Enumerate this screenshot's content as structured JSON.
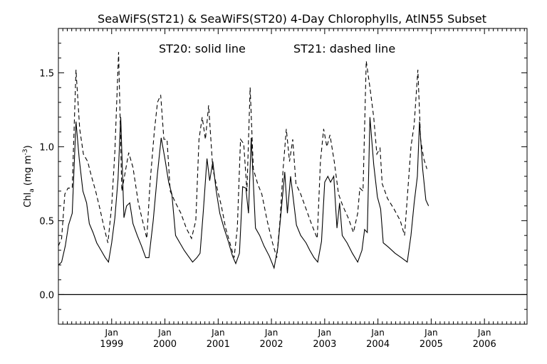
{
  "chart_data": {
    "type": "line",
    "title": "SeaWiFS(ST21) & SeaWiFS(ST20) 4-Day Chlorophylls, AtlN55 Subset",
    "annotations": [
      "ST20: solid line",
      "ST21: dashed line"
    ],
    "ylabel": {
      "main": "Chl",
      "sub": "a",
      "units_open": " (mg m",
      "units_sup": "-3",
      "units_close": ")"
    },
    "xlim": [
      1998.0,
      2006.8
    ],
    "ylim": [
      -0.2,
      1.8
    ],
    "yticks": [
      0.0,
      0.5,
      1.0,
      1.5
    ],
    "ytick_labels": [
      "0.0",
      "0.5",
      "1.0",
      "1.5"
    ],
    "xticks": [
      {
        "x": 1999.0,
        "top": "Jan",
        "bottom": "1999"
      },
      {
        "x": 2000.0,
        "top": "Jan",
        "bottom": "2000"
      },
      {
        "x": 2001.0,
        "top": "Jan",
        "bottom": "2001"
      },
      {
        "x": 2002.0,
        "top": "Jan",
        "bottom": "2002"
      },
      {
        "x": 2003.0,
        "top": "Jan",
        "bottom": "2003"
      },
      {
        "x": 2004.0,
        "top": "Jan",
        "bottom": "2004"
      },
      {
        "x": 2005.0,
        "top": "Jan",
        "bottom": "2005"
      },
      {
        "x": 2006.0,
        "top": "Jan",
        "bottom": "2006"
      }
    ],
    "reference_line": 0.0,
    "series": [
      {
        "name": "ST20",
        "style": "solid",
        "points": [
          [
            1998.0,
            0.2
          ],
          [
            1998.06,
            0.22
          ],
          [
            1998.13,
            0.33
          ],
          [
            1998.19,
            0.47
          ],
          [
            1998.26,
            0.55
          ],
          [
            1998.33,
            1.17
          ],
          [
            1998.39,
            0.92
          ],
          [
            1998.46,
            0.7
          ],
          [
            1998.53,
            0.62
          ],
          [
            1998.58,
            0.48
          ],
          [
            1998.65,
            0.42
          ],
          [
            1998.72,
            0.35
          ],
          [
            1998.8,
            0.3
          ],
          [
            1998.88,
            0.25
          ],
          [
            1998.94,
            0.22
          ],
          [
            1999.0,
            0.35
          ],
          [
            1999.06,
            0.52
          ],
          [
            1999.12,
            0.78
          ],
          [
            1999.17,
            1.2
          ],
          [
            1999.23,
            0.52
          ],
          [
            1999.28,
            0.6
          ],
          [
            1999.34,
            0.62
          ],
          [
            1999.4,
            0.48
          ],
          [
            1999.48,
            0.4
          ],
          [
            1999.56,
            0.33
          ],
          [
            1999.64,
            0.25
          ],
          [
            1999.7,
            0.25
          ],
          [
            1999.78,
            0.5
          ],
          [
            1999.86,
            0.82
          ],
          [
            1999.93,
            1.06
          ],
          [
            2000.0,
            0.92
          ],
          [
            2000.07,
            0.76
          ],
          [
            2000.13,
            0.68
          ],
          [
            2000.2,
            0.4
          ],
          [
            2000.28,
            0.35
          ],
          [
            2000.36,
            0.3
          ],
          [
            2000.44,
            0.26
          ],
          [
            2000.52,
            0.22
          ],
          [
            2000.6,
            0.25
          ],
          [
            2000.66,
            0.28
          ],
          [
            2000.72,
            0.56
          ],
          [
            2000.79,
            0.92
          ],
          [
            2000.84,
            0.77
          ],
          [
            2000.9,
            0.9
          ],
          [
            2000.96,
            0.71
          ],
          [
            2001.03,
            0.55
          ],
          [
            2001.11,
            0.45
          ],
          [
            2001.19,
            0.36
          ],
          [
            2001.27,
            0.26
          ],
          [
            2001.33,
            0.21
          ],
          [
            2001.4,
            0.28
          ],
          [
            2001.46,
            0.73
          ],
          [
            2001.52,
            0.72
          ],
          [
            2001.57,
            0.55
          ],
          [
            2001.62,
            1.06
          ],
          [
            2001.7,
            0.45
          ],
          [
            2001.78,
            0.4
          ],
          [
            2001.86,
            0.33
          ],
          [
            2001.96,
            0.26
          ],
          [
            2002.05,
            0.18
          ],
          [
            2002.12,
            0.32
          ],
          [
            2002.2,
            0.63
          ],
          [
            2002.25,
            0.83
          ],
          [
            2002.3,
            0.55
          ],
          [
            2002.36,
            0.8
          ],
          [
            2002.4,
            0.68
          ],
          [
            2002.47,
            0.47
          ],
          [
            2002.55,
            0.4
          ],
          [
            2002.65,
            0.35
          ],
          [
            2002.72,
            0.3
          ],
          [
            2002.8,
            0.25
          ],
          [
            2002.87,
            0.22
          ],
          [
            2002.94,
            0.36
          ],
          [
            2003.0,
            0.76
          ],
          [
            2003.06,
            0.8
          ],
          [
            2003.11,
            0.76
          ],
          [
            2003.17,
            0.8
          ],
          [
            2003.23,
            0.45
          ],
          [
            2003.28,
            0.62
          ],
          [
            2003.33,
            0.4
          ],
          [
            2003.42,
            0.35
          ],
          [
            2003.52,
            0.28
          ],
          [
            2003.62,
            0.22
          ],
          [
            2003.7,
            0.3
          ],
          [
            2003.75,
            0.44
          ],
          [
            2003.8,
            0.42
          ],
          [
            2003.85,
            1.2
          ],
          [
            2003.92,
            0.88
          ],
          [
            2003.99,
            0.66
          ],
          [
            2004.05,
            0.58
          ],
          [
            2004.1,
            0.35
          ],
          [
            2004.2,
            0.32
          ],
          [
            2004.32,
            0.28
          ],
          [
            2004.44,
            0.25
          ],
          [
            2004.55,
            0.22
          ],
          [
            2004.62,
            0.4
          ],
          [
            2004.68,
            0.62
          ],
          [
            2004.74,
            0.8
          ],
          [
            2004.78,
            1.17
          ],
          [
            2004.84,
            0.85
          ],
          [
            2004.9,
            0.64
          ],
          [
            2004.95,
            0.6
          ]
        ]
      },
      {
        "name": "ST21",
        "style": "dashed",
        "points": [
          [
            1998.0,
            0.33
          ],
          [
            1998.06,
            0.38
          ],
          [
            1998.12,
            0.68
          ],
          [
            1998.18,
            0.72
          ],
          [
            1998.26,
            0.72
          ],
          [
            1998.33,
            1.52
          ],
          [
            1998.4,
            1.12
          ],
          [
            1998.47,
            0.95
          ],
          [
            1998.55,
            0.9
          ],
          [
            1998.62,
            0.8
          ],
          [
            1998.7,
            0.7
          ],
          [
            1998.78,
            0.58
          ],
          [
            1998.86,
            0.45
          ],
          [
            1998.93,
            0.35
          ],
          [
            1999.0,
            0.6
          ],
          [
            1999.06,
            0.97
          ],
          [
            1999.13,
            1.64
          ],
          [
            1999.19,
            0.7
          ],
          [
            1999.25,
            0.82
          ],
          [
            1999.32,
            0.96
          ],
          [
            1999.4,
            0.86
          ],
          [
            1999.5,
            0.62
          ],
          [
            1999.58,
            0.5
          ],
          [
            1999.66,
            0.38
          ],
          [
            1999.72,
            0.75
          ],
          [
            1999.8,
            1.1
          ],
          [
            1999.86,
            1.3
          ],
          [
            1999.92,
            1.35
          ],
          [
            1999.98,
            1.05
          ],
          [
            2000.04,
            1.05
          ],
          [
            2000.1,
            0.7
          ],
          [
            2000.2,
            0.62
          ],
          [
            2000.3,
            0.55
          ],
          [
            2000.4,
            0.45
          ],
          [
            2000.5,
            0.38
          ],
          [
            2000.58,
            0.5
          ],
          [
            2000.64,
            1.05
          ],
          [
            2000.7,
            1.2
          ],
          [
            2000.76,
            1.05
          ],
          [
            2000.82,
            1.28
          ],
          [
            2000.9,
            0.85
          ],
          [
            2000.98,
            0.72
          ],
          [
            2001.06,
            0.6
          ],
          [
            2001.14,
            0.45
          ],
          [
            2001.22,
            0.35
          ],
          [
            2001.3,
            0.25
          ],
          [
            2001.36,
            0.45
          ],
          [
            2001.42,
            1.05
          ],
          [
            2001.48,
            1.02
          ],
          [
            2001.54,
            0.7
          ],
          [
            2001.6,
            1.4
          ],
          [
            2001.66,
            0.85
          ],
          [
            2001.74,
            0.75
          ],
          [
            2001.82,
            0.68
          ],
          [
            2001.92,
            0.5
          ],
          [
            2002.02,
            0.35
          ],
          [
            2002.1,
            0.25
          ],
          [
            2002.16,
            0.5
          ],
          [
            2002.22,
            0.85
          ],
          [
            2002.28,
            1.12
          ],
          [
            2002.34,
            0.9
          ],
          [
            2002.4,
            1.05
          ],
          [
            2002.46,
            0.75
          ],
          [
            2002.55,
            0.68
          ],
          [
            2002.65,
            0.58
          ],
          [
            2002.75,
            0.48
          ],
          [
            2002.86,
            0.38
          ],
          [
            2002.92,
            0.9
          ],
          [
            2002.98,
            1.12
          ],
          [
            2003.04,
            1.0
          ],
          [
            2003.1,
            1.08
          ],
          [
            2003.18,
            0.9
          ],
          [
            2003.26,
            0.68
          ],
          [
            2003.34,
            0.6
          ],
          [
            2003.44,
            0.52
          ],
          [
            2003.54,
            0.42
          ],
          [
            2003.62,
            0.55
          ],
          [
            2003.66,
            0.72
          ],
          [
            2003.72,
            0.7
          ],
          [
            2003.78,
            1.58
          ],
          [
            2003.85,
            1.4
          ],
          [
            2003.92,
            1.2
          ],
          [
            2003.98,
            0.95
          ],
          [
            2004.04,
            0.99
          ],
          [
            2004.08,
            0.75
          ],
          [
            2004.18,
            0.65
          ],
          [
            2004.3,
            0.58
          ],
          [
            2004.42,
            0.5
          ],
          [
            2004.5,
            0.4
          ],
          [
            2004.56,
            0.7
          ],
          [
            2004.62,
            1.0
          ],
          [
            2004.68,
            1.15
          ],
          [
            2004.75,
            1.52
          ],
          [
            2004.8,
            1.05
          ],
          [
            2004.86,
            0.92
          ],
          [
            2004.92,
            0.85
          ]
        ]
      }
    ]
  }
}
